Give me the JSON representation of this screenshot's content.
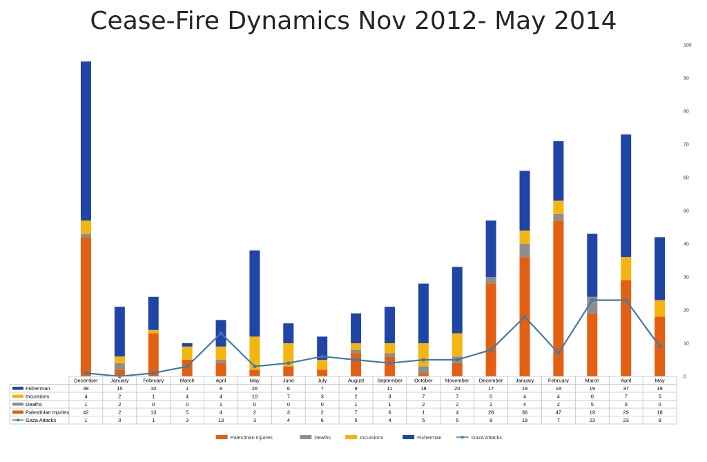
{
  "chart_data": {
    "type": "bar",
    "stacked": true,
    "title": "Cease-Fire Dynamics Nov 2012- May 2014",
    "categories": [
      "December",
      "January",
      "February",
      "March",
      "April",
      "May",
      "June",
      "July",
      "August",
      "September",
      "October",
      "November",
      "December",
      "January",
      "February",
      "March",
      "April",
      "May"
    ],
    "ylim": [
      0,
      100
    ],
    "yticks": [
      0,
      10,
      20,
      30,
      40,
      50,
      60,
      70,
      80,
      90,
      100
    ],
    "y_axis_side": "right",
    "legend_position": "bottom",
    "grid": false,
    "series": [
      {
        "name": "Palestinan Injuries",
        "kind": "bar",
        "color": "#E35F12",
        "values": [
          42,
          2,
          13,
          5,
          4,
          2,
          3,
          2,
          7,
          6,
          1,
          4,
          28,
          36,
          47,
          19,
          29,
          18
        ]
      },
      {
        "name": "Deaths",
        "kind": "bar",
        "color": "#8E8E8E",
        "values": [
          1,
          2,
          0,
          0,
          1,
          0,
          0,
          0,
          1,
          1,
          2,
          2,
          2,
          4,
          2,
          5,
          0,
          0
        ]
      },
      {
        "name": "Incursions",
        "kind": "bar",
        "color": "#F5B40F",
        "values": [
          4,
          2,
          1,
          4,
          4,
          10,
          7,
          3,
          2,
          3,
          7,
          7,
          0,
          4,
          4,
          0,
          7,
          5
        ]
      },
      {
        "name": "Fisherman",
        "kind": "bar",
        "color": "#1F45A7",
        "values": [
          48,
          15,
          10,
          1,
          8,
          26,
          6,
          7,
          9,
          11,
          18,
          20,
          17,
          18,
          18,
          19,
          37,
          19
        ]
      },
      {
        "name": "Gaza Attacks",
        "label": "Gaza Attacks",
        "kind": "line",
        "color": "#3E7BAE",
        "values": [
          1,
          0,
          1,
          3,
          13,
          3,
          4,
          6,
          5,
          4,
          5,
          5,
          8,
          18,
          7,
          23,
          23,
          9
        ]
      }
    ],
    "table_rows": [
      {
        "label": "Fisherman",
        "series_index": 3
      },
      {
        "label": "Incursions",
        "series_index": 2
      },
      {
        "label": "Deaths",
        "series_index": 1
      },
      {
        "label": "Palestinian Injuries",
        "series_index": 0
      },
      {
        "label": "Gaza Attacks",
        "series_index": 4
      }
    ]
  }
}
